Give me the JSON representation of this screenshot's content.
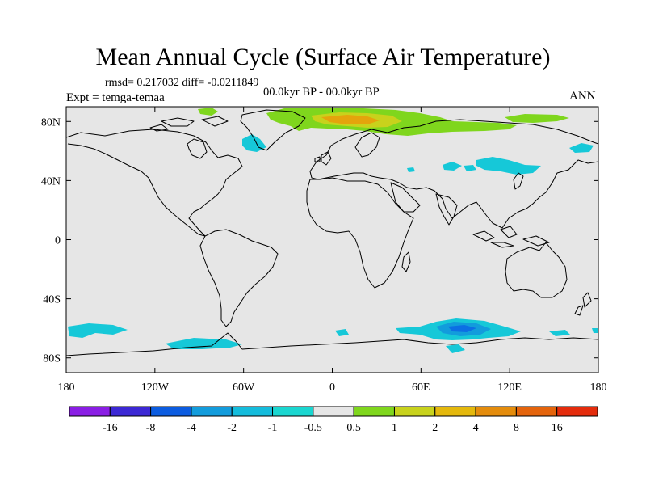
{
  "title": "Mean Annual Cycle (Surface Air Temperature)",
  "stats": "rmsd= 0.217032 diff= -0.0211849",
  "period": "00.0kyr BP - 00.0kyr BP",
  "experiment": "Expt = temga-temaa",
  "season": "ANN",
  "map": {
    "projection": "cylindrical-equidistant",
    "lon_range": [
      -180,
      180
    ],
    "lat_range": [
      -90,
      90
    ],
    "background_color": "#e6e6e6",
    "lat_ticks": [
      {
        "value": 80,
        "label": "80N"
      },
      {
        "value": 40,
        "label": "40N"
      },
      {
        "value": 0,
        "label": "0"
      },
      {
        "value": -40,
        "label": "40S"
      },
      {
        "value": -80,
        "label": "80S"
      }
    ],
    "lon_ticks": [
      {
        "value": -180,
        "label": "180"
      },
      {
        "value": -120,
        "label": "120W"
      },
      {
        "value": -60,
        "label": "60W"
      },
      {
        "value": 0,
        "label": "0"
      },
      {
        "value": 60,
        "label": "60E"
      },
      {
        "value": 120,
        "label": "120E"
      },
      {
        "value": 180,
        "label": "180"
      }
    ],
    "anomaly_regions": [
      {
        "name": "arctic-greenland-barents-warming",
        "level": "1",
        "color": "#7fd61d"
      },
      {
        "name": "barents-sea-warming-2",
        "level": "2",
        "color": "#c8d21c"
      },
      {
        "name": "barents-sea-warming-4",
        "level": "4",
        "color": "#e4a40c"
      },
      {
        "name": "canadian-arctic-warming",
        "level": "1",
        "color": "#7fd61d"
      },
      {
        "name": "east-siberian-warming",
        "level": "1",
        "color": "#7fd61d"
      },
      {
        "name": "labrador-sea-cooling",
        "level": "-1",
        "color": "#16c8d8"
      },
      {
        "name": "central-asia-cooling",
        "level": "-1",
        "color": "#16c8d8"
      },
      {
        "name": "bering-cooling",
        "level": "-1",
        "color": "#16c8d8"
      },
      {
        "name": "southern-ocean-pacific-cooling",
        "level": "-1",
        "color": "#16c8d8"
      },
      {
        "name": "ross-amundsen-cooling",
        "level": "-1",
        "color": "#16c8d8"
      },
      {
        "name": "east-antarctic-cooling",
        "level": "-1",
        "color": "#16c8d8"
      },
      {
        "name": "east-antarctic-cooling-2",
        "level": "-2",
        "color": "#129cdc"
      },
      {
        "name": "east-antarctic-cooling-4",
        "level": "-4",
        "color": "#0c6fe4"
      }
    ]
  },
  "colorbar": {
    "colors": [
      "#8a1ee4",
      "#3c28d4",
      "#0c5ce0",
      "#139cdc",
      "#14bcdc",
      "#1ad6d0",
      "#e6e6e6",
      "#7fd61d",
      "#c8d21c",
      "#e4b80c",
      "#e48c0c",
      "#e4640c",
      "#e42c0c"
    ],
    "labels": [
      "-16",
      "-8",
      "-4",
      "-2",
      "-1",
      "-0.5",
      "0.5",
      "1",
      "2",
      "4",
      "8",
      "16"
    ]
  }
}
